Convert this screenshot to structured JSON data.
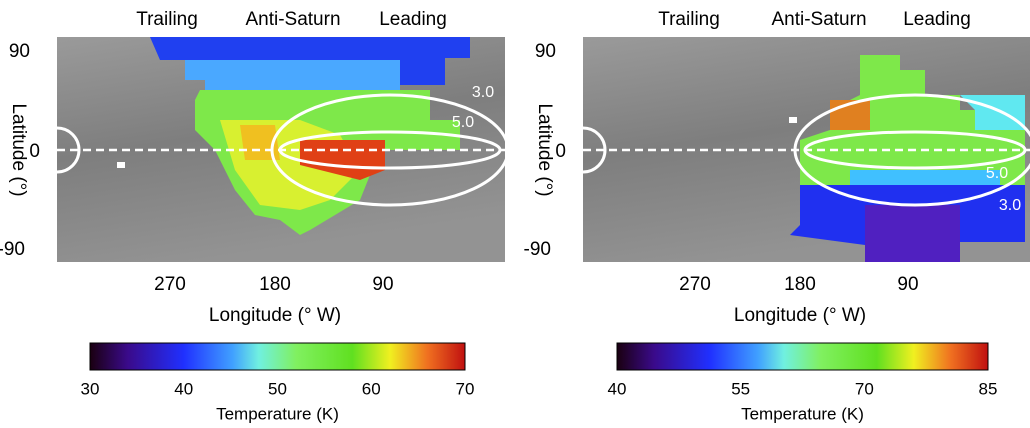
{
  "panels": [
    {
      "top_labels": [
        "Trailing",
        "Anti-Saturn",
        "Leading"
      ],
      "y_axis_label": "Latitude (°)",
      "y_ticks": [
        90,
        0,
        -90
      ],
      "x_ticks": [
        270,
        180,
        90
      ],
      "x_axis_label": "Longitude (° W)",
      "contour_labels": [
        "3.0",
        "5.0"
      ],
      "colorbar_ticks": [
        30,
        40,
        50,
        60,
        70
      ],
      "colorbar_label": "Temperature (K)"
    },
    {
      "top_labels": [
        "Trailing",
        "Anti-Saturn",
        "Leading"
      ],
      "y_axis_label": "Latitude (°)",
      "y_ticks": [
        90,
        0,
        -90
      ],
      "x_ticks": [
        270,
        180,
        90
      ],
      "x_axis_label": "Longitude (° W)",
      "contour_labels": [
        "5.0",
        "3.0"
      ],
      "colorbar_ticks": [
        40,
        55,
        70,
        85
      ],
      "colorbar_label": "Temperature (K)"
    }
  ]
}
